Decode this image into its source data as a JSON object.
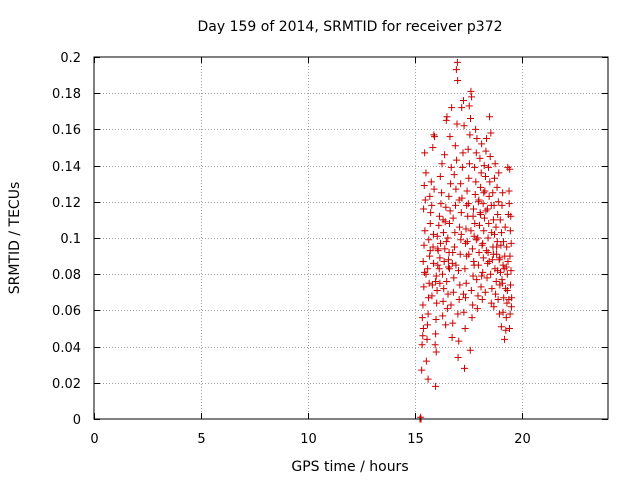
{
  "chart_data": {
    "type": "scatter",
    "title": "Day 159 of 2014, SRMTID for receiver p372",
    "xlabel": "GPS time / hours",
    "ylabel": "SRMTID / TECUs",
    "xlim": [
      0,
      24
    ],
    "ylim": [
      0,
      0.2
    ],
    "xticks": [
      0,
      5,
      10,
      15,
      20
    ],
    "yticks": [
      0,
      0.02,
      0.04,
      0.06,
      0.08,
      0.1,
      0.12,
      0.14,
      0.16,
      0.18,
      0.2
    ],
    "xtick_labels": [
      "0",
      "5",
      "10",
      "15",
      "20"
    ],
    "ytick_labels": [
      "0",
      "0.02",
      "0.04",
      "0.06",
      "0.08",
      "0.1",
      "0.12",
      "0.14",
      "0.16",
      "0.18",
      "0.2"
    ],
    "grid": true,
    "marker": "+",
    "series_color": "#cc0000",
    "series": [
      {
        "name": "p372",
        "points": [
          [
            15.22,
            0.0
          ],
          [
            15.25,
            0.001
          ],
          [
            15.27,
            0.0
          ],
          [
            15.3,
            0.027
          ],
          [
            15.32,
            0.041
          ],
          [
            15.35,
            0.046
          ],
          [
            15.38,
            0.05
          ],
          [
            15.33,
            0.056
          ],
          [
            15.36,
            0.063
          ],
          [
            15.4,
            0.073
          ],
          [
            15.43,
            0.081
          ],
          [
            15.37,
            0.087
          ],
          [
            15.41,
            0.096
          ],
          [
            15.45,
            0.104
          ],
          [
            15.39,
            0.116
          ],
          [
            15.47,
            0.121
          ],
          [
            15.42,
            0.129
          ],
          [
            15.5,
            0.136
          ],
          [
            15.44,
            0.147
          ],
          [
            15.52,
            0.032
          ],
          [
            15.55,
            0.044
          ],
          [
            15.57,
            0.052
          ],
          [
            15.6,
            0.058
          ],
          [
            15.62,
            0.067
          ],
          [
            15.65,
            0.075
          ],
          [
            15.58,
            0.083
          ],
          [
            15.67,
            0.09
          ],
          [
            15.63,
            0.099
          ],
          [
            15.7,
            0.108
          ],
          [
            15.72,
            0.114
          ],
          [
            15.68,
            0.123
          ],
          [
            15.75,
            0.131
          ],
          [
            15.6,
            0.022
          ],
          [
            15.78,
            0.068
          ],
          [
            15.8,
            0.074
          ],
          [
            15.83,
            0.095
          ],
          [
            15.85,
            0.102
          ],
          [
            15.77,
            0.118
          ],
          [
            15.88,
            0.127
          ],
          [
            15.82,
            0.15
          ],
          [
            15.9,
            0.156
          ],
          [
            15.87,
            0.157
          ],
          [
            15.93,
            0.041
          ],
          [
            15.95,
            0.047
          ],
          [
            15.97,
            0.055
          ],
          [
            16.0,
            0.064
          ],
          [
            16.02,
            0.071
          ],
          [
            15.98,
            0.079
          ],
          [
            16.05,
            0.085
          ],
          [
            16.07,
            0.093
          ],
          [
            16.03,
            0.101
          ],
          [
            16.1,
            0.107
          ],
          [
            15.95,
            0.018
          ],
          [
            15.98,
            0.037
          ],
          [
            16.12,
            0.083
          ],
          [
            16.15,
            0.089
          ],
          [
            16.18,
            0.097
          ],
          [
            16.13,
            0.112
          ],
          [
            16.2,
            0.119
          ],
          [
            16.23,
            0.125
          ],
          [
            16.17,
            0.134
          ],
          [
            16.25,
            0.141
          ],
          [
            16.28,
            0.057
          ],
          [
            16.3,
            0.065
          ],
          [
            16.33,
            0.072
          ],
          [
            16.27,
            0.08
          ],
          [
            16.35,
            0.087
          ],
          [
            16.38,
            0.094
          ],
          [
            16.32,
            0.103
          ],
          [
            16.4,
            0.109
          ],
          [
            16.43,
            0.117
          ],
          [
            16.37,
            0.146
          ],
          [
            16.45,
            0.165
          ],
          [
            16.48,
            0.167
          ],
          [
            16.42,
            0.052
          ],
          [
            16.5,
            0.061
          ],
          [
            16.53,
            0.069
          ],
          [
            16.47,
            0.076
          ],
          [
            16.55,
            0.084
          ],
          [
            16.58,
            0.092
          ],
          [
            16.52,
            0.1
          ],
          [
            16.6,
            0.108
          ],
          [
            16.63,
            0.115
          ],
          [
            16.57,
            0.123
          ],
          [
            16.65,
            0.13
          ],
          [
            16.68,
            0.139
          ],
          [
            16.62,
            0.156
          ],
          [
            16.7,
            0.172
          ],
          [
            16.72,
            0.045
          ],
          [
            16.75,
            0.053
          ],
          [
            16.67,
            0.063
          ],
          [
            16.78,
            0.07
          ],
          [
            16.8,
            0.078
          ],
          [
            16.73,
            0.086
          ],
          [
            16.83,
            0.095
          ],
          [
            16.85,
            0.103
          ],
          [
            16.77,
            0.111
          ],
          [
            16.88,
            0.118
          ],
          [
            16.9,
            0.127
          ],
          [
            16.82,
            0.135
          ],
          [
            16.93,
            0.143
          ],
          [
            16.87,
            0.151
          ],
          [
            16.95,
            0.163
          ],
          [
            16.92,
            0.193
          ],
          [
            16.97,
            0.197
          ],
          [
            16.98,
            0.187
          ],
          [
            17.0,
            0.034
          ],
          [
            17.03,
            0.043
          ],
          [
            16.99,
            0.058
          ],
          [
            17.05,
            0.066
          ],
          [
            17.08,
            0.074
          ],
          [
            17.02,
            0.082
          ],
          [
            17.1,
            0.091
          ],
          [
            17.13,
            0.099
          ],
          [
            17.07,
            0.106
          ],
          [
            17.15,
            0.114
          ],
          [
            17.18,
            0.122
          ],
          [
            17.12,
            0.13
          ],
          [
            17.2,
            0.139
          ],
          [
            17.23,
            0.147
          ],
          [
            17.17,
            0.172
          ],
          [
            17.25,
            0.176
          ],
          [
            17.28,
            0.162
          ],
          [
            17.3,
            0.028
          ],
          [
            17.33,
            0.05
          ],
          [
            17.27,
            0.059
          ],
          [
            17.35,
            0.067
          ],
          [
            17.38,
            0.075
          ],
          [
            17.32,
            0.083
          ],
          [
            17.4,
            0.09
          ],
          [
            17.43,
            0.098
          ],
          [
            17.37,
            0.105
          ],
          [
            17.45,
            0.112
          ],
          [
            17.48,
            0.119
          ],
          [
            17.42,
            0.126
          ],
          [
            17.5,
            0.133
          ],
          [
            17.53,
            0.141
          ],
          [
            17.47,
            0.149
          ],
          [
            17.55,
            0.157
          ],
          [
            17.58,
            0.166
          ],
          [
            17.52,
            0.173
          ],
          [
            17.6,
            0.181
          ],
          [
            17.63,
            0.178
          ],
          [
            17.57,
            0.038
          ],
          [
            17.65,
            0.056
          ],
          [
            17.68,
            0.063
          ],
          [
            17.62,
            0.071
          ],
          [
            17.7,
            0.079
          ],
          [
            17.73,
            0.087
          ],
          [
            17.67,
            0.094
          ],
          [
            17.75,
            0.101
          ],
          [
            17.78,
            0.108
          ],
          [
            17.72,
            0.116
          ],
          [
            17.8,
            0.124
          ],
          [
            17.83,
            0.131
          ],
          [
            17.77,
            0.139
          ],
          [
            17.85,
            0.147
          ],
          [
            17.88,
            0.155
          ],
          [
            17.82,
            0.16
          ],
          [
            17.9,
            0.061
          ],
          [
            17.93,
            0.068
          ],
          [
            17.87,
            0.077
          ],
          [
            17.95,
            0.085
          ],
          [
            17.98,
            0.092
          ],
          [
            17.92,
            0.1
          ],
          [
            18.0,
            0.107
          ],
          [
            18.03,
            0.114
          ],
          [
            17.97,
            0.121
          ],
          [
            18.05,
            0.128
          ],
          [
            18.08,
            0.136
          ],
          [
            18.02,
            0.144
          ],
          [
            18.1,
            0.152
          ],
          [
            18.13,
            0.066
          ],
          [
            18.07,
            0.073
          ],
          [
            18.15,
            0.081
          ],
          [
            18.18,
            0.089
          ],
          [
            18.12,
            0.096
          ],
          [
            18.2,
            0.104
          ],
          [
            18.23,
            0.111
          ],
          [
            18.17,
            0.119
          ],
          [
            18.25,
            0.126
          ],
          [
            18.28,
            0.134
          ],
          [
            18.22,
            0.14
          ],
          [
            18.3,
            0.148
          ],
          [
            18.33,
            0.155
          ],
          [
            18.27,
            0.07
          ],
          [
            18.35,
            0.078
          ],
          [
            18.38,
            0.086
          ],
          [
            18.32,
            0.093
          ],
          [
            18.4,
            0.1
          ],
          [
            18.43,
            0.108
          ],
          [
            18.37,
            0.116
          ],
          [
            18.45,
            0.123
          ],
          [
            18.48,
            0.131
          ],
          [
            18.42,
            0.139
          ],
          [
            18.5,
            0.145
          ],
          [
            18.53,
            0.158
          ],
          [
            18.47,
            0.167
          ],
          [
            18.55,
            0.064
          ],
          [
            18.58,
            0.072
          ],
          [
            18.52,
            0.08
          ],
          [
            18.6,
            0.088
          ],
          [
            18.63,
            0.095
          ],
          [
            18.57,
            0.103
          ],
          [
            18.65,
            0.11
          ],
          [
            18.68,
            0.118
          ],
          [
            18.62,
            0.125
          ],
          [
            18.7,
            0.133
          ],
          [
            18.73,
            0.141
          ],
          [
            18.67,
            0.062
          ],
          [
            18.75,
            0.069
          ],
          [
            18.78,
            0.076
          ],
          [
            18.72,
            0.083
          ],
          [
            18.8,
            0.091
          ],
          [
            18.83,
            0.098
          ],
          [
            18.77,
            0.106
          ],
          [
            18.85,
            0.113
          ],
          [
            18.88,
            0.12
          ],
          [
            18.82,
            0.128
          ],
          [
            18.9,
            0.136
          ],
          [
            18.93,
            0.058
          ],
          [
            18.87,
            0.066
          ],
          [
            18.95,
            0.074
          ],
          [
            18.98,
            0.081
          ],
          [
            18.92,
            0.088
          ],
          [
            19.0,
            0.096
          ],
          [
            19.03,
            0.103
          ],
          [
            18.97,
            0.11
          ],
          [
            19.05,
            0.118
          ],
          [
            19.08,
            0.125
          ],
          [
            19.02,
            0.051
          ],
          [
            19.1,
            0.059
          ],
          [
            19.13,
            0.067
          ],
          [
            19.07,
            0.075
          ],
          [
            19.15,
            0.083
          ],
          [
            19.18,
            0.09
          ],
          [
            19.12,
            0.098
          ],
          [
            19.2,
            0.106
          ],
          [
            19.23,
            0.049
          ],
          [
            19.17,
            0.044
          ],
          [
            19.25,
            0.056
          ],
          [
            19.28,
            0.064
          ],
          [
            19.22,
            0.072
          ],
          [
            19.3,
            0.08
          ],
          [
            19.33,
            0.087
          ],
          [
            19.27,
            0.095
          ],
          [
            19.35,
            0.113
          ],
          [
            19.38,
            0.126
          ],
          [
            19.32,
            0.139
          ],
          [
            19.4,
            0.05
          ],
          [
            19.43,
            0.058
          ],
          [
            19.37,
            0.066
          ],
          [
            19.45,
            0.074
          ],
          [
            19.47,
            0.082
          ],
          [
            19.42,
            0.09
          ],
          [
            19.48,
            0.097
          ],
          [
            19.44,
            0.104
          ],
          [
            19.46,
            0.112
          ],
          [
            19.39,
            0.119
          ],
          [
            19.41,
            0.138
          ],
          [
            19.49,
            0.062
          ],
          [
            19.5,
            0.067
          ],
          [
            16.05,
            0.094
          ],
          [
            16.6,
            0.083
          ],
          [
            17.15,
            0.102
          ],
          [
            17.5,
            0.091
          ],
          [
            17.85,
            0.099
          ],
          [
            18.1,
            0.079
          ],
          [
            18.45,
            0.087
          ],
          [
            18.8,
            0.095
          ],
          [
            19.1,
            0.085
          ],
          [
            15.7,
            0.093
          ],
          [
            16.3,
            0.11
          ],
          [
            16.9,
            0.085
          ],
          [
            17.4,
            0.118
          ],
          [
            17.95,
            0.12
          ],
          [
            18.3,
            0.115
          ],
          [
            18.7,
            0.102
          ],
          [
            19.25,
            0.084
          ],
          [
            15.5,
            0.08
          ],
          [
            16.15,
            0.075
          ],
          [
            16.75,
            0.092
          ],
          [
            17.25,
            0.069
          ],
          [
            17.7,
            0.112
          ],
          [
            18.2,
            0.125
          ],
          [
            18.55,
            0.118
          ],
          [
            18.95,
            0.089
          ],
          [
            15.85,
            0.086
          ],
          [
            16.45,
            0.098
          ],
          [
            17.05,
            0.121
          ],
          [
            17.6,
            0.104
          ],
          [
            18.05,
            0.113
          ],
          [
            18.4,
            0.092
          ],
          [
            18.85,
            0.082
          ],
          [
            19.3,
            0.071
          ],
          [
            15.95,
            0.076
          ],
          [
            16.55,
            0.088
          ],
          [
            17.35,
            0.097
          ],
          [
            17.75,
            0.085
          ],
          [
            18.15,
            0.097
          ],
          [
            18.65,
            0.091
          ],
          [
            19.05,
            0.077
          ]
        ]
      }
    ]
  }
}
